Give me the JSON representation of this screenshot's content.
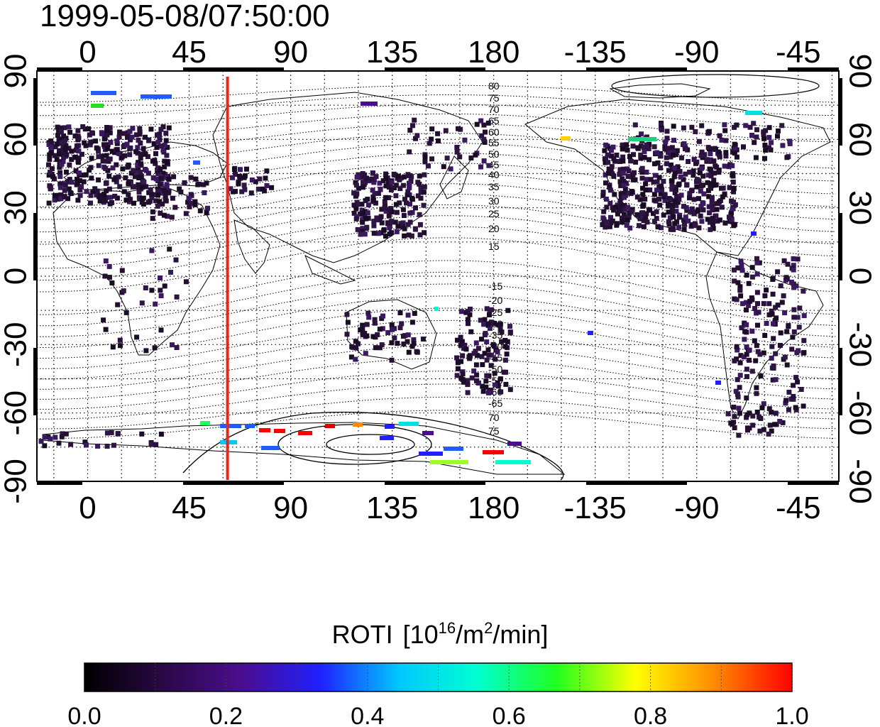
{
  "timestamp": "1999-05-08/07:50:00",
  "map": {
    "top_lon_ticks": [
      "0",
      "45",
      "90",
      "135",
      "180",
      "-135",
      "-90",
      "-45"
    ],
    "bottom_lon_ticks": [
      "0",
      "45",
      "90",
      "135",
      "180",
      "-135",
      "-90",
      "-45"
    ],
    "left_lat_ticks": [
      "90",
      "60",
      "30",
      "0",
      "-30",
      "-60",
      "-90"
    ],
    "right_lat_ticks": [
      "90",
      "60",
      "30",
      "0",
      "-30",
      "-60",
      "-90"
    ],
    "lon_tick_values": [
      0,
      45,
      90,
      135,
      180,
      225,
      270,
      315
    ],
    "lat_tick_values": [
      90,
      60,
      30,
      0,
      -30,
      -60,
      -90
    ],
    "lon_range": [
      -22.5,
      333
    ],
    "lat_range": [
      -90,
      90
    ],
    "grid": true,
    "grid_style": "dotted",
    "marker_line_lon": 62,
    "marker_line_color": "#e8261c",
    "north_contour_labels": [
      "80",
      "75",
      "70",
      "65",
      "60",
      "55",
      "50",
      "45",
      "40",
      "35",
      "30",
      "25",
      "20",
      "15"
    ],
    "south_contour_labels": [
      "-15",
      "-20",
      "-25",
      "-30",
      "-35",
      "-40",
      "-45",
      "-50",
      "-55",
      "-60",
      "-65",
      "70",
      "75"
    ]
  },
  "colorbar": {
    "title_main": "ROTI",
    "title_unit_prefix": "[10",
    "title_exp1": "16",
    "title_unit_mid": "/m",
    "title_exp2": "2",
    "title_unit_suffix": "/min]",
    "min": 0.0,
    "max": 1.0,
    "tick_labels": [
      "0.0",
      "0.2",
      "0.4",
      "0.6",
      "0.8",
      "1.0"
    ],
    "tick_values": [
      0.0,
      0.2,
      0.4,
      0.6,
      0.8,
      1.0
    ],
    "colormap": [
      "#000000",
      "#2a0845",
      "#4b0d8f",
      "#1f1fff",
      "#00c8ff",
      "#00ffd0",
      "#20ff20",
      "#ffff00",
      "#ff8c00",
      "#ff0000"
    ]
  }
}
